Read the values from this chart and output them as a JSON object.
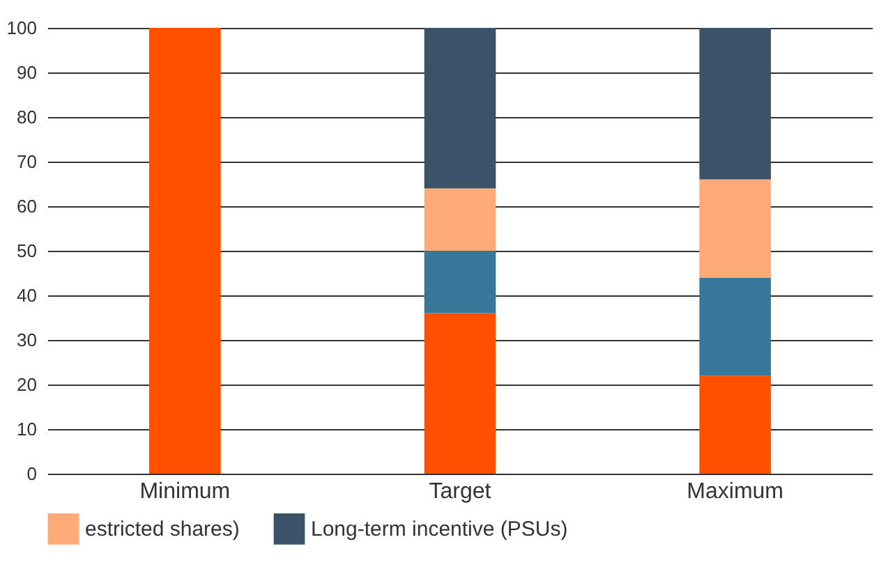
{
  "chart_data": {
    "type": "bar",
    "stacked": true,
    "categories": [
      "Minimum",
      "Target",
      "Maximum"
    ],
    "series": [
      {
        "color": "#ff5000",
        "values": [
          100,
          36,
          22
        ]
      },
      {
        "color": "#37789a",
        "values": [
          0,
          14,
          22
        ]
      },
      {
        "name": "estricted shares)",
        "color": "#ffab78",
        "values": [
          0,
          14,
          22
        ]
      },
      {
        "name": "Long-term incentive (PSUs)",
        "color": "#3a5368",
        "values": [
          0,
          36,
          34
        ]
      }
    ],
    "ylim": [
      0,
      100
    ],
    "yticks": [
      0,
      10,
      20,
      30,
      40,
      50,
      60,
      70,
      80,
      90,
      100
    ],
    "grid": "y",
    "legend": "bottom"
  }
}
